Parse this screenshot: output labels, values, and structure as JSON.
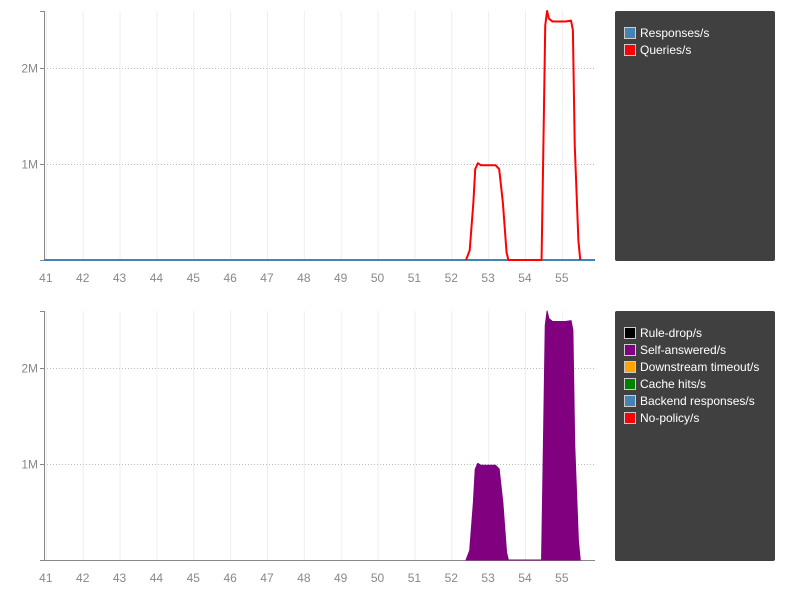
{
  "chart_data": [
    {
      "type": "line",
      "title": "",
      "xlabel": "",
      "ylabel": "",
      "xlim": [
        40.95,
        55.9
      ],
      "ylim": [
        0,
        2600000
      ],
      "x_ticks": [
        "41",
        "42",
        "43",
        "44",
        "45",
        "46",
        "47",
        "48",
        "49",
        "50",
        "51",
        "52",
        "53",
        "54",
        "55"
      ],
      "y_ticks": [
        {
          "value": 1000000,
          "label": "1M"
        },
        {
          "value": 2000000,
          "label": "2M"
        }
      ],
      "grid": true,
      "legend_position": "right",
      "series": [
        {
          "name": "Responses/s",
          "color": "#4682b4",
          "x": [
            40.95,
            55.9
          ],
          "y": [
            0,
            0
          ]
        },
        {
          "name": "Queries/s",
          "color": "#ff0000",
          "x": [
            52.4,
            52.5,
            52.6,
            52.65,
            52.72,
            52.8,
            52.9,
            53.0,
            53.1,
            53.2,
            53.3,
            53.4,
            53.5,
            53.55,
            54.45,
            54.5,
            54.55,
            54.6,
            54.65,
            54.75,
            54.9,
            55.0,
            55.1,
            55.25,
            55.3,
            55.35,
            55.45,
            55.5
          ],
          "y": [
            null,
            100000,
            600000,
            950000,
            1010000,
            990000,
            990000,
            990000,
            990000,
            990000,
            950000,
            600000,
            80000,
            null,
            null,
            1200000,
            2450000,
            2600000,
            2520000,
            2490000,
            2490000,
            2490000,
            2490000,
            2500000,
            2400000,
            1200000,
            200000,
            null
          ]
        }
      ]
    },
    {
      "type": "area",
      "title": "",
      "xlabel": "",
      "ylabel": "",
      "xlim": [
        40.95,
        55.9
      ],
      "ylim": [
        0,
        2600000
      ],
      "x_ticks": [
        "41",
        "42",
        "43",
        "44",
        "45",
        "46",
        "47",
        "48",
        "49",
        "50",
        "51",
        "52",
        "53",
        "54",
        "55"
      ],
      "y_ticks": [
        {
          "value": 1000000,
          "label": "1M"
        },
        {
          "value": 2000000,
          "label": "2M"
        }
      ],
      "grid": true,
      "legend_position": "right",
      "series": [
        {
          "name": "Rule-drop/s",
          "color": "#000000",
          "x": [],
          "y": []
        },
        {
          "name": "Self-answered/s",
          "color": "#800080",
          "x": [
            52.4,
            52.5,
            52.6,
            52.65,
            52.72,
            52.8,
            52.9,
            53.0,
            53.1,
            53.2,
            53.3,
            53.4,
            53.5,
            53.55,
            54.45,
            54.5,
            54.55,
            54.6,
            54.65,
            54.75,
            54.9,
            55.0,
            55.1,
            55.25,
            55.3,
            55.35,
            55.45,
            55.5
          ],
          "y": [
            null,
            100000,
            600000,
            950000,
            1010000,
            990000,
            990000,
            990000,
            990000,
            990000,
            950000,
            600000,
            80000,
            null,
            null,
            1200000,
            2450000,
            2600000,
            2520000,
            2490000,
            2490000,
            2490000,
            2490000,
            2500000,
            2400000,
            1200000,
            200000,
            null
          ]
        },
        {
          "name": "Downstream timeout/s",
          "color": "#ffa500",
          "x": [],
          "y": []
        },
        {
          "name": "Cache hits/s",
          "color": "#008000",
          "x": [],
          "y": []
        },
        {
          "name": "Backend responses/s",
          "color": "#4682b4",
          "x": [],
          "y": []
        },
        {
          "name": "No-policy/s",
          "color": "#ff0000",
          "x": [],
          "y": []
        }
      ]
    }
  ]
}
